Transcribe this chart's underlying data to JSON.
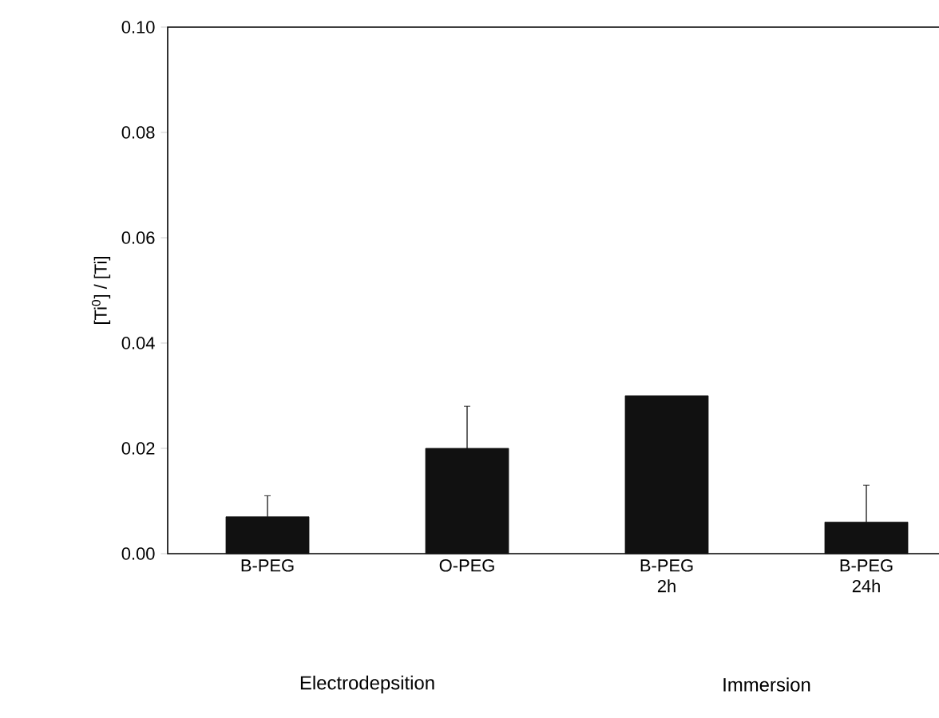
{
  "chart_data": {
    "type": "bar",
    "ylabel": "[Ti$^{0}$] / [Ti]",
    "categories": [
      "B-PEG",
      "O-PEG",
      "B-PEG 2h",
      "B-PEG 24h"
    ],
    "values": [
      0.007,
      0.02,
      0.03,
      0.006
    ],
    "errors": [
      [
        0.007,
        0.011
      ],
      [
        0.02,
        0.028
      ],
      null,
      [
        0.006,
        0.013
      ]
    ],
    "color": "#111111",
    "ylim": [
      0,
      0.1
    ],
    "yticks": [
      {
        "value": 0,
        "label": "0.00"
      },
      {
        "value": 0.02,
        "label": "0.02"
      },
      {
        "value": 0.04,
        "label": "0.04"
      },
      {
        "value": 0.06,
        "label": "0.06"
      },
      {
        "value": 0.08,
        "label": "0.08"
      },
      {
        "value": 0.1,
        "label": "0.10"
      }
    ],
    "annotations": [
      "Electrodepsition",
      "Immersion"
    ]
  }
}
